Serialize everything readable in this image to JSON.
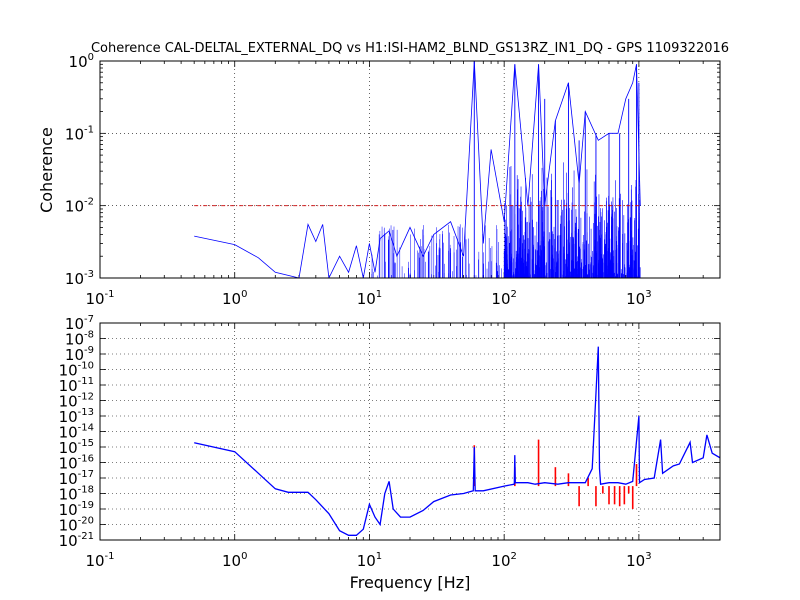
{
  "chart_data": [
    {
      "type": "line",
      "title": "Coherence CAL-DELTAL_EXTERNAL_DQ vs H1:ISI-HAM2_BLND_GS13RZ_IN1_DQ - GPS 1109322016",
      "xlabel": "",
      "ylabel": "Coherence",
      "xscale": "log",
      "yscale": "log",
      "xlim": [
        0.1,
        4000
      ],
      "ylim": [
        0.001,
        1
      ],
      "grid": true,
      "x_tick_labels": [
        "10^-1",
        "10^0",
        "10^1",
        "10^2",
        "10^3"
      ],
      "y_tick_labels": [
        "10^-3",
        "10^-2",
        "10^-1",
        "10^0"
      ],
      "colors": {
        "series": "#0000ff",
        "threshold": "#cc0000"
      },
      "series": [
        {
          "x": [
            0.5,
            1.0,
            1.5,
            2.0,
            3.0,
            3.5,
            4.0,
            4.5,
            5.0,
            6.0,
            7.0,
            8.0,
            9.0,
            10.0,
            11.0,
            12.0,
            14.0,
            16.0,
            20.0,
            25.0,
            30.0,
            40.0,
            50.0,
            60.0,
            70.0,
            80.0,
            100.0,
            120.0,
            150.0,
            180.0,
            200.0,
            240.0,
            300.0,
            360.0,
            400.0,
            500.0,
            600.0,
            700.0,
            800.0,
            900.0,
            960.0,
            1024.0
          ],
          "y": [
            0.0038,
            0.0029,
            0.0019,
            0.0012,
            0.001,
            0.0055,
            0.0032,
            0.0055,
            0.001,
            0.002,
            0.0012,
            0.0028,
            0.001,
            0.003,
            0.0012,
            0.0035,
            0.0045,
            0.002,
            0.005,
            0.002,
            0.004,
            0.006,
            0.002,
            1.0,
            0.003,
            0.06,
            0.006,
            0.9,
            0.01,
            0.9,
            0.01,
            0.15,
            0.5,
            0.02,
            0.2,
            0.08,
            0.1,
            0.1,
            0.3,
            0.5,
            0.9,
            0.01
          ]
        },
        {
          "x": [
            0.5,
            1024
          ],
          "y": [
            0.01,
            0.01
          ]
        }
      ]
    },
    {
      "type": "line",
      "title": "",
      "xlabel": "Frequency [Hz]",
      "ylabel": "",
      "xscale": "log",
      "yscale": "log",
      "xlim": [
        0.1,
        4000
      ],
      "ylim": [
        1e-21,
        1e-07
      ],
      "grid": true,
      "x_tick_labels": [
        "10^-1",
        "10^0",
        "10^1",
        "10^2",
        "10^3"
      ],
      "y_tick_labels": [
        "10^-21",
        "10^-20",
        "10^-19",
        "10^-18",
        "10^-17",
        "10^-16",
        "10^-15",
        "10^-14",
        "10^-13",
        "10^-12",
        "10^-11",
        "10^-10",
        "10^-9",
        "10^-8",
        "10^-7"
      ],
      "colors": {
        "series": "#0000ff",
        "highlight": "#ff0000"
      },
      "series": [
        {
          "x": [
            0.5,
            1.0,
            1.5,
            2.0,
            2.5,
            3.0,
            3.5,
            4.0,
            5.0,
            6.0,
            7.0,
            8.0,
            9.0,
            10.0,
            11.0,
            12.0,
            13.0,
            14.0,
            15.0,
            17.0,
            20.0,
            25.0,
            30.0,
            40.0,
            50.0,
            59.0,
            60.0,
            61.0,
            70.0,
            100.0,
            119.0,
            120.0,
            121.0,
            150.0,
            170.0,
            200.0,
            250.0,
            300.0,
            400.0,
            450.0,
            500.0,
            510.0,
            520.0,
            600.0,
            700.0,
            800.0,
            900.0,
            1000.0,
            1010.0,
            1100.0,
            1300.0,
            1450.0,
            1500.0,
            1800.0,
            2000.0,
            2400.0,
            2500.0,
            3000.0,
            3200.0,
            3500.0,
            4000.0
          ],
          "y": [
            1.9e-15,
            5e-16,
            2e-17,
            2e-18,
            1.2e-18,
            1.2e-18,
            1.2e-18,
            4e-19,
            5e-20,
            4e-21,
            2e-21,
            2e-21,
            5e-21,
            2e-19,
            3e-20,
            1e-20,
            1e-18,
            6e-18,
            1e-19,
            3e-20,
            3e-20,
            8e-20,
            3e-19,
            8e-19,
            1e-18,
            1.5e-18,
            1e-15,
            1.5e-18,
            1.5e-18,
            3e-18,
            4e-18,
            3e-16,
            5e-18,
            5e-18,
            4e-18,
            5e-18,
            4e-18,
            5e-18,
            5e-18,
            4e-17,
            3e-09,
            4e-17,
            4e-18,
            5e-18,
            5e-18,
            4e-18,
            6e-18,
            1e-13,
            5e-18,
            8e-18,
            1e-17,
            3e-15,
            2e-17,
            6e-17,
            8e-17,
            2e-15,
            1e-16,
            2e-16,
            6e-15,
            4e-16,
            2e-16
          ]
        },
        {
          "x": [
            60,
            120,
            180,
            240,
            300,
            360,
            420,
            480,
            540,
            600,
            660,
            720,
            780,
            840,
            900,
            960
          ],
          "y": [
            1.3e-15,
            5e-17,
            3e-15,
            5e-17,
            2e-17,
            1.5e-19,
            1e-17,
            1.5e-19,
            1e-18,
            2e-19,
            2e-19,
            1.5e-19,
            2e-19,
            1e-18,
            1e-19,
            8e-17
          ]
        }
      ]
    }
  ]
}
